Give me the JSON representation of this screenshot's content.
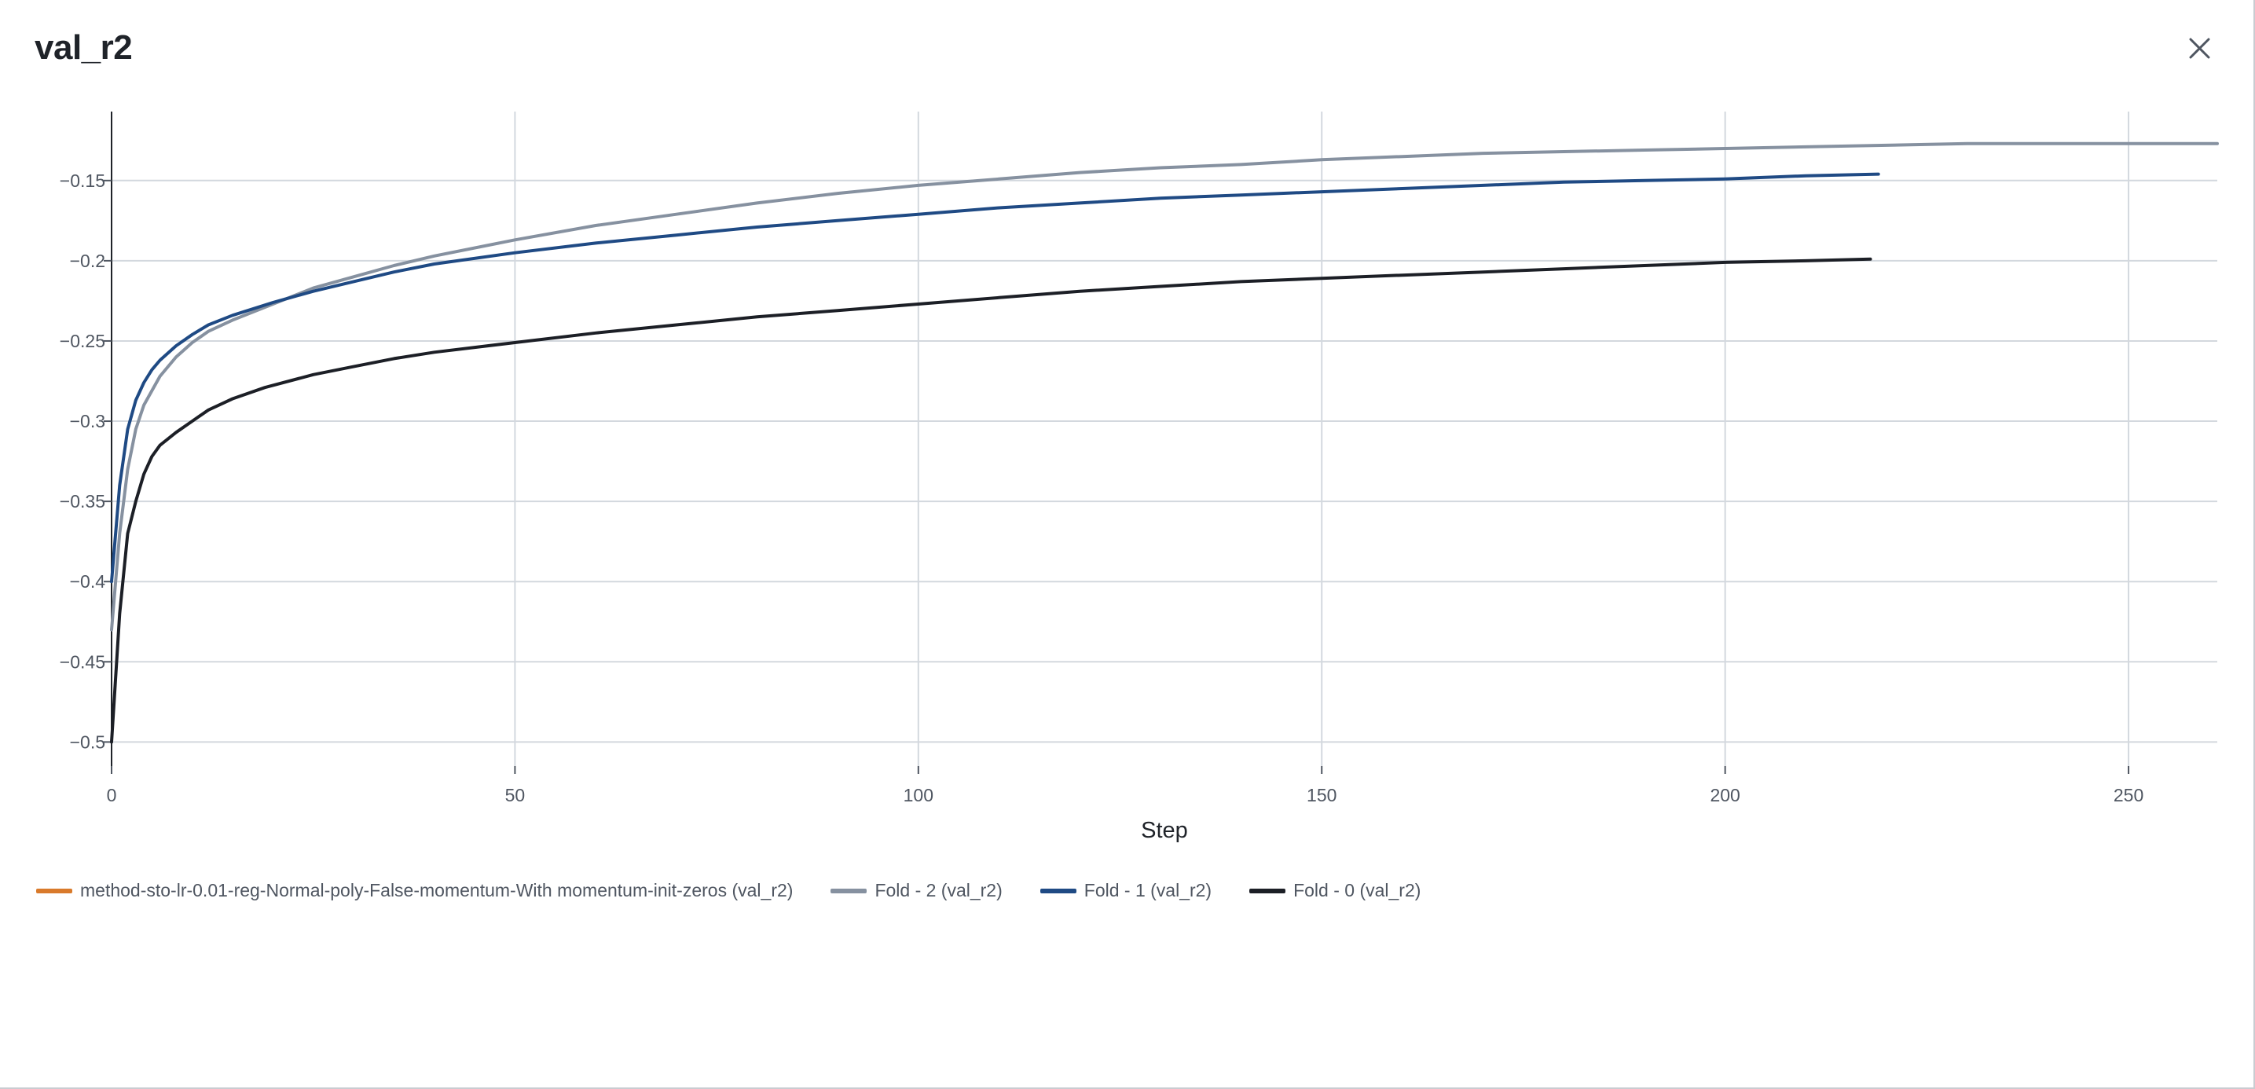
{
  "modal": {
    "title": "val_r2",
    "close_icon": "close-icon"
  },
  "chart_data": {
    "type": "line",
    "title": "",
    "xlabel": "Step",
    "ylabel": "",
    "xlim": [
      0,
      261
    ],
    "ylim": [
      -0.515,
      -0.107
    ],
    "grid": true,
    "legend_position": "bottom-left",
    "x_ticks": [
      0,
      50,
      100,
      150,
      200,
      250
    ],
    "x_tick_labels": [
      "0",
      "50",
      "100",
      "150",
      "200",
      "250"
    ],
    "y_ticks": [
      -0.5,
      -0.45,
      -0.4,
      -0.35,
      -0.3,
      -0.25,
      -0.2,
      -0.15
    ],
    "y_tick_labels": [
      "−0.5",
      "−0.45",
      "−0.4",
      "−0.35",
      "−0.3",
      "−0.25",
      "−0.2",
      "−0.15"
    ],
    "series": [
      {
        "name": "method-sto-lr-0.01-reg-Normal-poly-False-momentum-With momentum-init-zeros (val_r2)",
        "color": "#d97a2b",
        "x": [],
        "y": []
      },
      {
        "name": "Fold - 2 (val_r2)",
        "color": "#8691a0",
        "x": [
          0,
          1,
          2,
          3,
          4,
          6,
          8,
          10,
          12,
          15,
          20,
          25,
          30,
          35,
          40,
          50,
          60,
          70,
          80,
          90,
          100,
          110,
          120,
          130,
          140,
          150,
          160,
          170,
          180,
          190,
          200,
          210,
          220,
          230,
          240,
          250,
          261
        ],
        "y": [
          -0.43,
          -0.37,
          -0.33,
          -0.305,
          -0.29,
          -0.272,
          -0.26,
          -0.251,
          -0.244,
          -0.237,
          -0.227,
          -0.217,
          -0.21,
          -0.203,
          -0.197,
          -0.187,
          -0.178,
          -0.171,
          -0.164,
          -0.158,
          -0.153,
          -0.149,
          -0.145,
          -0.142,
          -0.14,
          -0.137,
          -0.135,
          -0.133,
          -0.132,
          -0.131,
          -0.13,
          -0.129,
          -0.128,
          -0.127,
          -0.127,
          -0.127,
          -0.127
        ]
      },
      {
        "name": "Fold - 1 (val_r2)",
        "color": "#1f4a84",
        "x": [
          0,
          1,
          2,
          3,
          4,
          5,
          6,
          8,
          10,
          12,
          15,
          20,
          25,
          30,
          35,
          40,
          50,
          60,
          70,
          80,
          90,
          100,
          110,
          120,
          130,
          140,
          150,
          160,
          170,
          180,
          190,
          200,
          210,
          219
        ],
        "y": [
          -0.4,
          -0.34,
          -0.305,
          -0.287,
          -0.276,
          -0.268,
          -0.262,
          -0.253,
          -0.246,
          -0.24,
          -0.234,
          -0.226,
          -0.219,
          -0.213,
          -0.207,
          -0.202,
          -0.195,
          -0.189,
          -0.184,
          -0.179,
          -0.175,
          -0.171,
          -0.167,
          -0.164,
          -0.161,
          -0.159,
          -0.157,
          -0.155,
          -0.153,
          -0.151,
          -0.15,
          -0.149,
          -0.147,
          -0.146
        ]
      },
      {
        "name": "Fold - 0 (val_r2)",
        "color": "#1c1f26",
        "x": [
          0,
          1,
          2,
          3,
          4,
          5,
          6,
          8,
          10,
          12,
          15,
          19,
          25,
          30,
          35,
          40,
          50,
          60,
          70,
          80,
          90,
          100,
          110,
          120,
          130,
          140,
          150,
          160,
          170,
          180,
          190,
          200,
          210,
          218
        ],
        "y": [
          -0.5,
          -0.42,
          -0.37,
          -0.35,
          -0.333,
          -0.322,
          -0.315,
          -0.307,
          -0.3,
          -0.293,
          -0.286,
          -0.279,
          -0.271,
          -0.266,
          -0.261,
          -0.257,
          -0.251,
          -0.245,
          -0.24,
          -0.235,
          -0.231,
          -0.227,
          -0.223,
          -0.219,
          -0.216,
          -0.213,
          -0.211,
          -0.209,
          -0.207,
          -0.205,
          -0.203,
          -0.201,
          -0.2,
          -0.199
        ]
      }
    ]
  }
}
